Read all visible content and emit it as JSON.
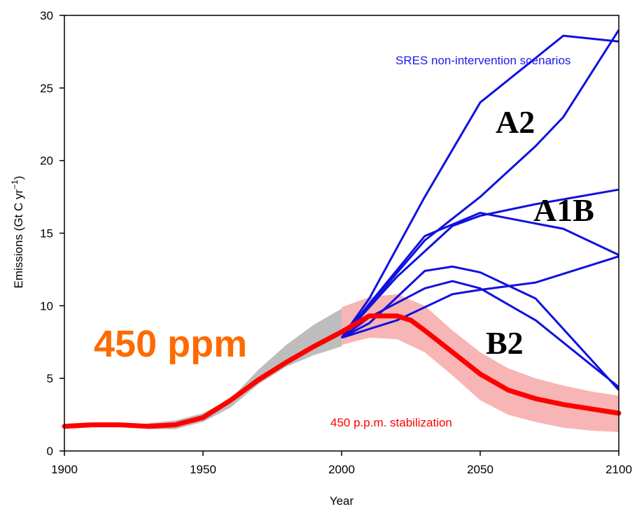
{
  "chart_data": {
    "type": "line",
    "title": "",
    "xlabel": "Year",
    "ylabel_main": "Emissions (Gt C yr",
    "ylabel_sup": "−1",
    "ylabel_close": ")",
    "xlim": [
      1900,
      2100
    ],
    "ylim": [
      0,
      30
    ],
    "x_ticks": [
      1900,
      1950,
      2000,
      2050,
      2100
    ],
    "x_tick_labels": [
      "1900",
      "1950",
      "2000",
      "2050",
      "2100"
    ],
    "y_ticks": [
      0,
      5,
      10,
      15,
      20,
      25,
      30
    ],
    "y_tick_labels": [
      "0",
      "5",
      "10",
      "15",
      "20",
      "25",
      "30"
    ],
    "grid": false,
    "colors": {
      "historical_band": "#bdbdbd",
      "uncertainty_band": "#f7b5b5",
      "stabilization_line": "#ff0000",
      "sres_lines": "#1010e0",
      "big_label": "#ff6a00",
      "sres_label": "#1a1aee",
      "stab_label": "#ff0000"
    },
    "historical_band": {
      "x": [
        1930,
        1940,
        1950,
        1960,
        1970,
        1980,
        1990,
        2000
      ],
      "upper": [
        1.9,
        2.1,
        2.6,
        3.6,
        5.6,
        7.3,
        8.7,
        9.8
      ],
      "lower": [
        1.5,
        1.5,
        2.0,
        3.0,
        4.6,
        5.8,
        6.6,
        7.2
      ]
    },
    "uncertainty_band": {
      "x": [
        2000,
        2010,
        2020,
        2030,
        2040,
        2050,
        2060,
        2070,
        2080,
        2090,
        2100
      ],
      "upper": [
        9.9,
        10.6,
        10.8,
        10.0,
        8.3,
        6.8,
        5.7,
        5.0,
        4.5,
        4.1,
        3.8
      ],
      "lower": [
        7.3,
        7.8,
        7.7,
        6.8,
        5.2,
        3.5,
        2.5,
        2.0,
        1.6,
        1.4,
        1.3
      ]
    },
    "series": [
      {
        "role": "stabilization",
        "x": [
          1900,
          1910,
          1920,
          1930,
          1940,
          1950,
          1960,
          1970,
          1980,
          1990,
          2000,
          2010,
          2020,
          2025,
          2030,
          2040,
          2050,
          2060,
          2070,
          2080,
          2090,
          2100
        ],
        "values": [
          1.7,
          1.8,
          1.8,
          1.7,
          1.8,
          2.3,
          3.5,
          4.9,
          6.1,
          7.2,
          8.2,
          9.3,
          9.3,
          9.0,
          8.3,
          6.8,
          5.3,
          4.2,
          3.6,
          3.2,
          2.9,
          2.6
        ]
      },
      {
        "role": "sres",
        "x": [
          2000,
          2010,
          2030,
          2050,
          2080,
          2100
        ],
        "values": [
          7.8,
          10.5,
          17.5,
          24.0,
          28.6,
          28.2
        ]
      },
      {
        "role": "sres",
        "x": [
          2000,
          2030,
          2050,
          2070,
          2080,
          2100
        ],
        "values": [
          7.8,
          14.5,
          17.5,
          21.0,
          23.0,
          29.0
        ]
      },
      {
        "role": "sres",
        "x": [
          2000,
          2030,
          2050,
          2080,
          2100
        ],
        "values": [
          7.8,
          14.8,
          16.4,
          15.3,
          13.5
        ]
      },
      {
        "role": "sres",
        "x": [
          2000,
          2020,
          2040,
          2050,
          2070,
          2100
        ],
        "values": [
          7.8,
          12.0,
          15.5,
          16.2,
          17.0,
          18.0
        ]
      },
      {
        "role": "sres",
        "x": [
          2000,
          2010,
          2030,
          2040,
          2050,
          2070,
          2100
        ],
        "values": [
          7.8,
          8.8,
          12.4,
          12.7,
          12.3,
          10.5,
          4.2
        ]
      },
      {
        "role": "sres",
        "x": [
          2000,
          2010,
          2030,
          2040,
          2050,
          2070,
          2100
        ],
        "values": [
          7.8,
          9.2,
          11.2,
          11.7,
          11.2,
          9.0,
          4.4
        ]
      },
      {
        "role": "sres",
        "x": [
          2000,
          2020,
          2040,
          2050,
          2070,
          2100
        ],
        "values": [
          7.8,
          9.0,
          10.8,
          11.1,
          11.6,
          13.4
        ]
      }
    ],
    "annotations": {
      "sres_label": "SRES non-intervention scenarios",
      "a2": "A2",
      "a1b": "A1B",
      "b2": "B2",
      "big": "450 ppm",
      "stab": "450 p.p.m. stabilization"
    }
  }
}
